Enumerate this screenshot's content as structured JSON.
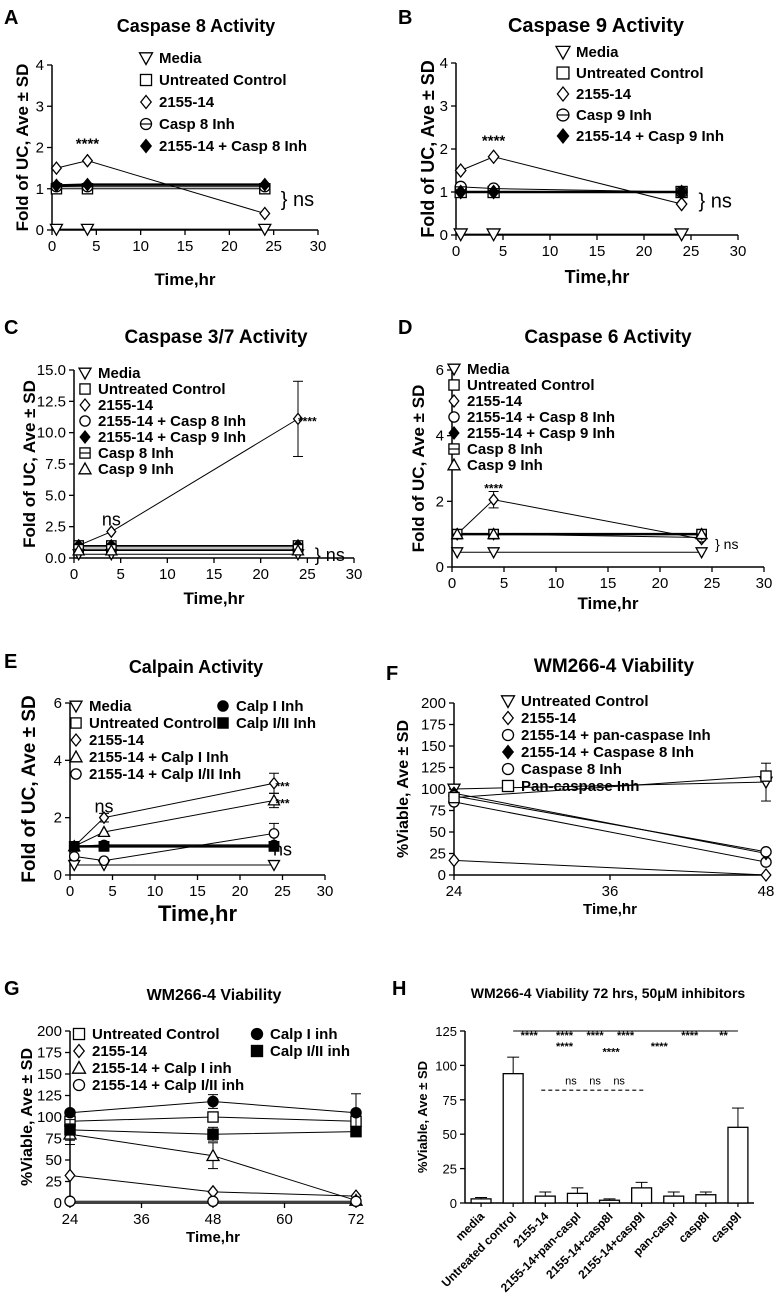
{
  "panels": [
    {
      "letter": "A",
      "title": "Caspase 8 Activity",
      "type": "line",
      "xlabel": "Time,hr",
      "ylabel": "Fold of UC, Ave ± SD",
      "xlim": [
        0,
        30
      ],
      "ylim": [
        0,
        4
      ],
      "xticks": [
        "0",
        "5",
        "10",
        "15",
        "20",
        "25",
        "30"
      ],
      "yticks": [
        "0",
        "1",
        "2",
        "3",
        "4"
      ],
      "series": [
        {
          "name": "Media",
          "marker": "triangle-down",
          "x": [
            0.5,
            4,
            24
          ],
          "y": [
            0.02,
            0.02,
            0.02
          ],
          "lw": 1
        },
        {
          "name": "Untreated Control",
          "marker": "square",
          "x": [
            0.5,
            4,
            24
          ],
          "y": [
            1.0,
            1.0,
            1.0
          ],
          "lw": 1
        },
        {
          "name": "2155-14",
          "marker": "diamond",
          "x": [
            0.5,
            4,
            24
          ],
          "y": [
            1.5,
            1.68,
            0.4
          ],
          "lw": 1
        },
        {
          "name": "Casp 8 Inh",
          "marker": "circle-line",
          "x": [
            0.5,
            4,
            24
          ],
          "y": [
            1.05,
            1.05,
            1.05
          ],
          "lw": 1
        },
        {
          "name": "2155-14 + Casp 8 Inh",
          "marker": "diamond-filled",
          "x": [
            0.5,
            4,
            24
          ],
          "y": [
            1.08,
            1.1,
            1.1
          ],
          "lw": 2.5
        }
      ],
      "annotations": [
        {
          "text": "****",
          "x": 4,
          "y": 2.1,
          "size": 15
        },
        {
          "text": "} ns",
          "x": 25.8,
          "y": 0.75,
          "size": 20
        }
      ]
    },
    {
      "letter": "B",
      "title": "Caspase 9 Activity",
      "type": "line",
      "xlabel": "Time,hr",
      "ylabel": "Fold of UC, Ave ± SD",
      "xlim": [
        0,
        30
      ],
      "ylim": [
        0,
        4
      ],
      "xticks": [
        "0",
        "5",
        "10",
        "15",
        "20",
        "25",
        "30"
      ],
      "yticks": [
        "0",
        "1",
        "2",
        "3",
        "4"
      ],
      "series": [
        {
          "name": "Media",
          "marker": "triangle-down",
          "x": [
            0.5,
            4,
            24
          ],
          "y": [
            0.02,
            0.02,
            0.02
          ],
          "lw": 1
        },
        {
          "name": "Untreated Control",
          "marker": "square",
          "x": [
            0.5,
            4,
            24
          ],
          "y": [
            1.0,
            1.0,
            1.0
          ],
          "lw": 1
        },
        {
          "name": "2155-14",
          "marker": "diamond",
          "x": [
            0.5,
            4,
            24
          ],
          "y": [
            1.5,
            1.82,
            0.72
          ],
          "lw": 1
        },
        {
          "name": "Casp 9 Inh",
          "marker": "circle-line",
          "x": [
            0.5,
            4,
            24
          ],
          "y": [
            1.12,
            1.08,
            1.0
          ],
          "lw": 1
        },
        {
          "name": "2155-14 + Casp 9 Inh",
          "marker": "diamond-filled",
          "x": [
            0.5,
            4,
            24
          ],
          "y": [
            1.0,
            1.0,
            1.0
          ],
          "lw": 2.5
        }
      ],
      "annotations": [
        {
          "text": "****",
          "x": 4,
          "y": 2.2,
          "size": 15
        },
        {
          "text": "} ns",
          "x": 25.8,
          "y": 0.8,
          "size": 20
        }
      ]
    },
    {
      "letter": "C",
      "title": "Caspase 3/7 Activity",
      "type": "line",
      "xlabel": "Time,hr",
      "ylabel": "Fold of UC, Ave ± SD",
      "xlim": [
        0,
        30
      ],
      "ylim": [
        0,
        15
      ],
      "xticks": [
        "0",
        "5",
        "10",
        "15",
        "20",
        "25",
        "30"
      ],
      "yticks": [
        "0.0",
        "2.5",
        "5.0",
        "7.5",
        "10.0",
        "12.5",
        "15.0"
      ],
      "series": [
        {
          "name": "Media",
          "marker": "triangle-down",
          "x": [
            0.5,
            4,
            24
          ],
          "y": [
            0.3,
            0.3,
            0.3
          ],
          "lw": 1
        },
        {
          "name": "Untreated Control",
          "marker": "square",
          "x": [
            0.5,
            4,
            24
          ],
          "y": [
            1.0,
            1.0,
            1.0
          ],
          "lw": 1
        },
        {
          "name": "2155-14",
          "marker": "diamond",
          "x": [
            0.5,
            4,
            24
          ],
          "y": [
            1.0,
            2.1,
            11.1
          ],
          "err": [
            0,
            0,
            3.0
          ],
          "lw": 1
        },
        {
          "name": "2155-14 + Casp 8 Inh",
          "marker": "circle",
          "x": [
            0.5,
            4,
            24
          ],
          "y": [
            0.9,
            0.9,
            0.9
          ],
          "lw": 1
        },
        {
          "name": "2155-14 + Casp 9 Inh",
          "marker": "diamond-filled",
          "x": [
            0.5,
            4,
            24
          ],
          "y": [
            1.0,
            1.0,
            1.0
          ],
          "lw": 1
        },
        {
          "name": "Casp 8 Inh",
          "marker": "square-line",
          "x": [
            0.5,
            4,
            24
          ],
          "y": [
            0.7,
            0.7,
            0.7
          ],
          "lw": 1
        },
        {
          "name": "Casp 9 Inh",
          "marker": "triangle-up",
          "x": [
            0.5,
            4,
            24
          ],
          "y": [
            0.6,
            0.6,
            0.6
          ],
          "lw": 1
        }
      ],
      "annotations": [
        {
          "text": "ns",
          "x": 4,
          "y": 3.1,
          "size": 18
        },
        {
          "text": "****",
          "x": 25,
          "y": 10.9,
          "size": 12
        },
        {
          "text": "} ns",
          "x": 25.8,
          "y": 0.25,
          "size": 18
        }
      ]
    },
    {
      "letter": "D",
      "title": "Caspase 6 Activity",
      "type": "line",
      "xlabel": "Time,hr",
      "ylabel": "Fold of UC, Ave ± SD",
      "xlim": [
        0,
        30
      ],
      "ylim": [
        0,
        6
      ],
      "xticks": [
        "0",
        "5",
        "10",
        "15",
        "20",
        "25",
        "30"
      ],
      "yticks": [
        "0",
        "2",
        "4",
        "6"
      ],
      "series": [
        {
          "name": "Media",
          "marker": "triangle-down",
          "x": [
            0.5,
            4,
            24
          ],
          "y": [
            0.45,
            0.45,
            0.45
          ],
          "lw": 1
        },
        {
          "name": "Untreated Control",
          "marker": "square",
          "x": [
            0.5,
            4,
            24
          ],
          "y": [
            1.0,
            1.0,
            1.0
          ],
          "lw": 1
        },
        {
          "name": "2155-14",
          "marker": "diamond",
          "x": [
            0.5,
            4,
            24
          ],
          "y": [
            1.0,
            2.05,
            0.85
          ],
          "err": [
            0,
            0.25,
            0
          ],
          "lw": 1
        },
        {
          "name": "2155-14 + Casp 8 Inh",
          "marker": "circle",
          "x": [
            0.5,
            4,
            24
          ],
          "y": [
            1.0,
            1.0,
            0.9
          ],
          "lw": 1
        },
        {
          "name": "2155-14 + Casp 9 Inh",
          "marker": "diamond-filled",
          "x": [
            0.5,
            4,
            24
          ],
          "y": [
            1.0,
            1.0,
            1.0
          ],
          "lw": 2.5
        },
        {
          "name": "Casp 8 Inh",
          "marker": "square-line",
          "x": [
            0.5,
            4,
            24
          ],
          "y": [
            1.0,
            1.0,
            1.0
          ],
          "lw": 1
        },
        {
          "name": "Casp 9 Inh",
          "marker": "triangle-up",
          "x": [
            0.5,
            4,
            24
          ],
          "y": [
            1.0,
            1.0,
            1.0
          ],
          "lw": 1
        }
      ],
      "annotations": [
        {
          "text": "****",
          "x": 4,
          "y": 2.4,
          "size": 12
        },
        {
          "text": "} ns",
          "x": 25.3,
          "y": 0.7,
          "size": 14
        }
      ]
    },
    {
      "letter": "E",
      "title": "Calpain Activity",
      "type": "line",
      "xlabel": "Time,hr",
      "ylabel": "Fold of UC, Ave ± SD",
      "xlim": [
        0,
        30
      ],
      "ylim": [
        0,
        6
      ],
      "xticks": [
        "0",
        "5",
        "10",
        "15",
        "20",
        "25",
        "30"
      ],
      "yticks": [
        "0",
        "2",
        "4",
        "6"
      ],
      "series": [
        {
          "name": "Media",
          "marker": "triangle-down",
          "x": [
            0.5,
            4,
            24
          ],
          "y": [
            0.35,
            0.35,
            0.35
          ],
          "lw": 1
        },
        {
          "name": "Untreated Control",
          "marker": "square",
          "x": [
            0.5,
            4,
            24
          ],
          "y": [
            1.0,
            1.0,
            1.0
          ],
          "lw": 1
        },
        {
          "name": "2155-14",
          "marker": "diamond",
          "x": [
            0.5,
            4,
            24
          ],
          "y": [
            1.0,
            2.0,
            3.2
          ],
          "err": [
            0,
            0.15,
            0.35
          ],
          "lw": 1
        },
        {
          "name": "2155-14 + Calp  I Inh",
          "marker": "triangle-up",
          "x": [
            0.5,
            4,
            24
          ],
          "y": [
            1.0,
            1.5,
            2.6
          ],
          "err": [
            0,
            0,
            0.25
          ],
          "lw": 1
        },
        {
          "name": "2155-14 + Calp  I/II Inh",
          "marker": "circle",
          "x": [
            0.5,
            4,
            24
          ],
          "y": [
            0.65,
            0.5,
            1.45
          ],
          "err": [
            0,
            0,
            0.35
          ],
          "lw": 1
        },
        {
          "name": "Calp I Inh",
          "marker": "circle-filled",
          "x": [
            0.5,
            4,
            24
          ],
          "y": [
            1.0,
            1.05,
            1.05
          ],
          "lw": 1
        },
        {
          "name": "Calp I/II Inh",
          "marker": "square-filled",
          "x": [
            0.5,
            4,
            24
          ],
          "y": [
            1.0,
            1.0,
            1.0
          ],
          "lw": 2.5
        }
      ],
      "annotations": [
        {
          "text": "ns",
          "x": 4,
          "y": 2.4,
          "size": 18
        },
        {
          "text": "***",
          "x": 25,
          "y": 3.1,
          "size": 12
        },
        {
          "text": "***",
          "x": 25,
          "y": 2.5,
          "size": 12
        },
        {
          "text": "ns",
          "x": 25,
          "y": 0.9,
          "size": 18
        }
      ]
    },
    {
      "letter": "F",
      "title": "WM266-4 Viability",
      "type": "line",
      "xlabel": "Time,hr",
      "ylabel": "%Viable, Ave ± SD",
      "xlim": [
        24,
        48
      ],
      "ylim": [
        0,
        200
      ],
      "xtickvals": [
        24,
        36,
        48
      ],
      "xticks": [
        "24",
        "36",
        "48"
      ],
      "yticks": [
        "0",
        "25",
        "50",
        "75",
        "100",
        "125",
        "150",
        "175",
        "200"
      ],
      "series": [
        {
          "name": "Untreated Control",
          "marker": "triangle-down",
          "x": [
            24,
            48
          ],
          "y": [
            100,
            108
          ],
          "err": [
            0,
            22
          ],
          "lw": 1
        },
        {
          "name": "2155-14",
          "marker": "diamond",
          "x": [
            24,
            48
          ],
          "y": [
            17,
            0
          ],
          "lw": 1
        },
        {
          "name": "2155-14 + pan-caspase Inh",
          "marker": "circle",
          "x": [
            24,
            48
          ],
          "y": [
            85,
            15
          ],
          "lw": 1
        },
        {
          "name": "2155-14 + Caspase 8 Inh",
          "marker": "diamond-filled",
          "x": [
            24,
            48
          ],
          "y": [
            95,
            25
          ],
          "lw": 1
        },
        {
          "name": "Caspase 8 Inh",
          "marker": "circle",
          "x": [
            24,
            48
          ],
          "y": [
            92,
            27
          ],
          "lw": 1
        },
        {
          "name": "Pan-caspase Inh",
          "marker": "square",
          "x": [
            24,
            48
          ],
          "y": [
            90,
            115
          ],
          "lw": 1
        }
      ],
      "annotations": []
    },
    {
      "letter": "G",
      "title": "WM266-4 Viability",
      "type": "line",
      "xlabel": "Time,hr",
      "ylabel": "%Viable, Ave ± SD",
      "xlim": [
        24,
        72
      ],
      "ylim": [
        0,
        200
      ],
      "xtickvals": [
        24,
        36,
        48,
        60,
        72
      ],
      "xticks": [
        "24",
        "36",
        "48",
        "60",
        "72"
      ],
      "yticks": [
        "0",
        "25",
        "50",
        "75",
        "100",
        "125",
        "150",
        "175",
        "200"
      ],
      "series": [
        {
          "name": "Untreated Control",
          "marker": "square",
          "x": [
            24,
            48,
            72
          ],
          "y": [
            95,
            100,
            95
          ],
          "lw": 1
        },
        {
          "name": "2155-14",
          "marker": "diamond",
          "x": [
            24,
            48,
            72
          ],
          "y": [
            32,
            13,
            8
          ],
          "lw": 1
        },
        {
          "name": "2155-14 + Calp I inh",
          "marker": "triangle-up",
          "x": [
            24,
            48,
            72
          ],
          "y": [
            80,
            55,
            3
          ],
          "err": [
            12,
            15,
            0
          ],
          "lw": 1
        },
        {
          "name": "2155-14 + Calp I/II inh",
          "marker": "circle",
          "x": [
            24,
            48,
            72
          ],
          "y": [
            2,
            2,
            2
          ],
          "lw": 1
        },
        {
          "name": "Calp I inh",
          "marker": "circle-filled",
          "x": [
            24,
            48,
            72
          ],
          "y": [
            105,
            118,
            105
          ],
          "err": [
            0,
            8,
            22
          ],
          "lw": 1
        },
        {
          "name": "Calp I/II inh",
          "marker": "square-filled",
          "x": [
            24,
            48,
            72
          ],
          "y": [
            85,
            80,
            83
          ],
          "err": [
            12,
            8,
            0
          ],
          "lw": 1
        }
      ],
      "annotations": []
    },
    {
      "letter": "H",
      "title": "WM266-4 Viability 72 hrs, 50μM inhibitors",
      "type": "bar",
      "xlabel": "",
      "ylabel": "%Viable, Ave ± SD",
      "ylim": [
        0,
        125
      ],
      "yticks": [
        "0",
        "25",
        "50",
        "75",
        "100",
        "125"
      ],
      "categories": [
        "media",
        "Untreated control",
        "2155-14",
        "2155-14+pan-caspI",
        "2155-14+casp8I",
        "2155-14+casp9I",
        "pan-caspI",
        "casp8I",
        "casp9I"
      ],
      "values": [
        3,
        94,
        5,
        7,
        2,
        11,
        5,
        6,
        55
      ],
      "errors": [
        1,
        12,
        3,
        4,
        1,
        4,
        3,
        2,
        14
      ],
      "annotations": [
        {
          "text": "****",
          "x": 1.5,
          "y": 125
        },
        {
          "text": "****",
          "x": 2.6,
          "y": 125
        },
        {
          "text": "****",
          "x": 3.55,
          "y": 125
        },
        {
          "text": "****",
          "x": 4.5,
          "y": 125
        },
        {
          "text": "****",
          "x": 6.5,
          "y": 125
        },
        {
          "text": "**",
          "x": 7.55,
          "y": 125
        },
        {
          "text": "****",
          "x": 2.6,
          "y": 117
        },
        {
          "text": "****",
          "x": 4.05,
          "y": 113
        },
        {
          "text": "****",
          "x": 5.55,
          "y": 117
        },
        {
          "text": "ns",
          "x": 2.8,
          "y": 87
        },
        {
          "text": "ns",
          "x": 3.55,
          "y": 87
        },
        {
          "text": "ns",
          "x": 4.3,
          "y": 87
        }
      ]
    }
  ]
}
